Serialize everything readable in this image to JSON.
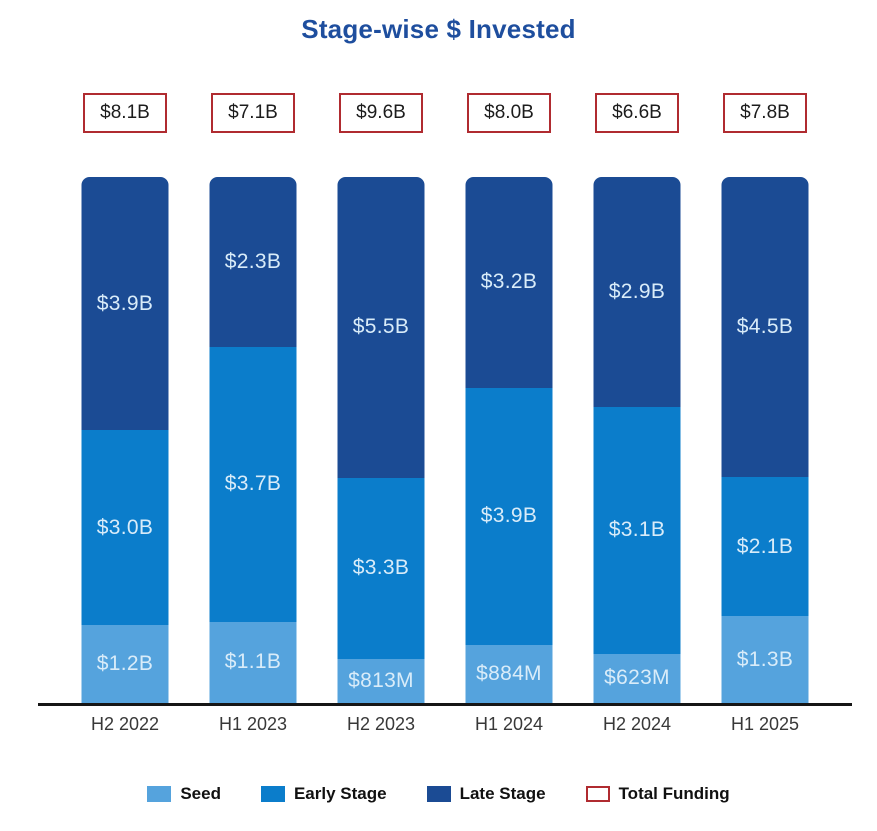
{
  "title": "Stage-wise $ Invested",
  "colors": {
    "title_text": "#1e4e9e",
    "seed": "#55a3dd",
    "early_stage": "#0b7dcb",
    "late_stage": "#1b4b94",
    "total_border": "#b02b30",
    "total_fill": "#ffffff",
    "total_text": "#1c1c1c",
    "segment_label_text": "#d9ecf9",
    "axis_line": "#161616",
    "x_label_text": "#383838",
    "legend_text": "#111111"
  },
  "chart_data": {
    "type": "bar",
    "subtype": "100-percent-stacked-column",
    "title": "Stage-wise $ Invested",
    "categories": [
      "H2 2022",
      "H1 2023",
      "H2 2023",
      "H1 2024",
      "H2 2024",
      "H1 2025"
    ],
    "totals": {
      "name": "Total Funding",
      "labels": [
        "$8.1B",
        "$7.1B",
        "$9.6B",
        "$8.0B",
        "$6.6B",
        "$7.8B"
      ],
      "values_billion_usd": [
        8.1,
        7.1,
        9.6,
        8.0,
        6.6,
        7.8
      ]
    },
    "series": [
      {
        "name": "Seed",
        "color_key": "seed",
        "labels": [
          "$1.2B",
          "$1.1B",
          "$813M",
          "$884M",
          "$623M",
          "$1.3B"
        ],
        "values_billion_usd": [
          1.2,
          1.1,
          0.813,
          0.884,
          0.623,
          1.3
        ]
      },
      {
        "name": "Early Stage",
        "color_key": "early_stage",
        "labels": [
          "$3.0B",
          "$3.7B",
          "$3.3B",
          "$3.9B",
          "$3.1B",
          "$2.1B"
        ],
        "values_billion_usd": [
          3.0,
          3.7,
          3.3,
          3.9,
          3.1,
          2.1
        ]
      },
      {
        "name": "Late Stage",
        "color_key": "late_stage",
        "labels": [
          "$3.9B",
          "$2.3B",
          "$5.5B",
          "$3.2B",
          "$2.9B",
          "$4.5B"
        ],
        "values_billion_usd": [
          3.9,
          2.3,
          5.5,
          3.2,
          2.9,
          4.5
        ]
      }
    ],
    "stack_order_top_to_bottom": [
      "Late Stage",
      "Early Stage",
      "Seed"
    ],
    "legend": [
      "Seed",
      "Early Stage",
      "Late Stage",
      "Total Funding"
    ],
    "legend_position": "bottom",
    "axis": {
      "baseline_visible": true,
      "y_axis_visible": false,
      "gridlines": false
    }
  }
}
